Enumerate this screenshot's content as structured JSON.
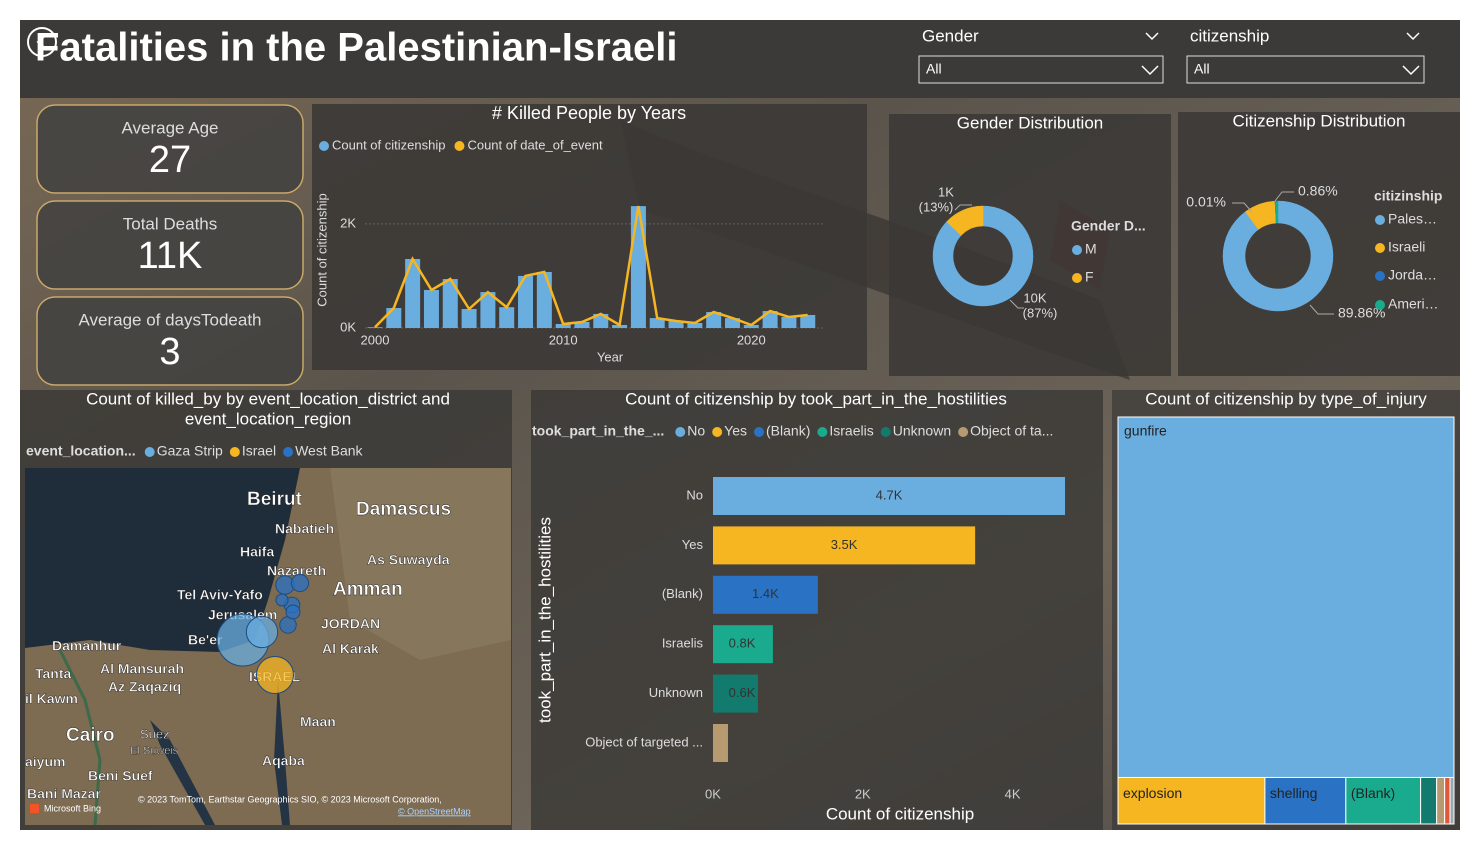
{
  "header": {
    "title": "Fatalities in the Palestinian-Israeli"
  },
  "filters": [
    {
      "label": "Gender",
      "value": "All"
    },
    {
      "label": "citizenship",
      "value": "All"
    }
  ],
  "cards": [
    {
      "label": "Average Age",
      "value": 27
    },
    {
      "label": "Total Deaths",
      "value": "11K"
    },
    {
      "label": "Average of daysTodeath",
      "value": 3
    }
  ],
  "map": {
    "title_lines": [
      "Count of killed_by by event_location_district and",
      "event_location_region"
    ],
    "legend_title": "event_location...",
    "series": [
      {
        "name": "Gaza Strip",
        "color": "#6aaee0",
        "values": [
          5500,
          2000
        ]
      },
      {
        "name": "Israel",
        "color": "#f5b621",
        "values": [
          2800
        ]
      },
      {
        "name": "West Bank",
        "color": "#2a72c4",
        "values": [
          700,
          600,
          500,
          550,
          400,
          300
        ]
      }
    ],
    "places": [
      "Beirut",
      "Damascus",
      "Nabatieh",
      "Haifa",
      "As Suwayda",
      "Nazareth",
      "Amman",
      "Tel Aviv-Yafo",
      "Jerusalem",
      "JORDAN",
      "Be'er",
      "Damanhur",
      "Al Mansurah",
      "Al Karak",
      "Tanta",
      "Az Zaqaziq",
      "il Kawm",
      "ISRAEL",
      "Cairo",
      "Suez",
      "El Suweis",
      "Maan",
      "Aqaba",
      "aiyum",
      "Beni Suef",
      "Bani Mazar"
    ],
    "attribution": [
      "© 2023 TomTom, Earthstar Geographics SIO, © 2023 Microsoft Corporation,",
      "© OpenStreetMap",
      "Microsoft Bing"
    ]
  },
  "chart_data": [
    {
      "type": "combo",
      "title": "# Killed People by Years",
      "x_label": "Year",
      "y_label": "Count of citizenship",
      "x": [
        2000,
        2001,
        2002,
        2003,
        2004,
        2005,
        2006,
        2007,
        2008,
        2009,
        2010,
        2011,
        2012,
        2013,
        2014,
        2015,
        2016,
        2017,
        2018,
        2019,
        2020,
        2021,
        2022,
        2023
      ],
      "series": [
        {
          "name": "Count of citizenship",
          "color": "#6aaee0",
          "mark": "bar",
          "values": [
            15,
            384,
            1325,
            730,
            940,
            365,
            690,
            400,
            1000,
            1075,
            77,
            115,
            270,
            58,
            2340,
            190,
            135,
            96,
            307,
            190,
            58,
            326,
            211,
            250
          ]
        },
        {
          "name": "Count of date_of_event",
          "color": "#f5b621",
          "mark": "line",
          "values": [
            15,
            384,
            1325,
            730,
            940,
            365,
            690,
            400,
            1000,
            1075,
            77,
            115,
            270,
            58,
            2340,
            190,
            135,
            96,
            307,
            190,
            58,
            326,
            211,
            250
          ]
        }
      ],
      "xlim": [
        1999.5,
        2023.8
      ],
      "xticks": [
        2000,
        2010,
        2020
      ],
      "ylim": [
        0,
        2400
      ],
      "yticks": [
        {
          "value": 0,
          "label": "0K"
        },
        {
          "value": 2000,
          "label": "2K"
        }
      ],
      "grid": true
    },
    {
      "type": "donut",
      "title": "Gender Distribution",
      "legend_title": "Gender D...",
      "categories": [
        "M",
        "F"
      ],
      "colors": [
        "#6aaee0",
        "#f5b621"
      ],
      "values": [
        87,
        13
      ],
      "value_labels": [
        "(87%)",
        "(13%)"
      ],
      "counts": [
        10000,
        1000
      ],
      "count_labels": [
        "10K",
        "1K"
      ]
    },
    {
      "type": "donut",
      "title": "Citizenship Distribution",
      "legend_title": "citizinship",
      "categories": [
        "Pales…",
        "Israeli",
        "Jorda…",
        "Ameri…"
      ],
      "colors": [
        "#6aaee0",
        "#f5b621",
        "#2a72c4",
        "#1aab8e"
      ],
      "values": [
        89.86,
        9.27,
        0.01,
        0.86
      ],
      "value_labels": [
        "89.86%",
        null,
        "0.01%",
        "0.86%"
      ]
    },
    {
      "type": "hbar",
      "title": "Count of citizenship by took_part_in_the_hostilities",
      "legend_title": "took_part_in_the_...",
      "legend": [
        "No",
        "Yes",
        "(Blank)",
        "Israelis",
        "Unknown",
        "Object of ta..."
      ],
      "categories": [
        "No",
        "Yes",
        "(Blank)",
        "Israelis",
        "Unknown",
        "Object of targeted ..."
      ],
      "colors": [
        "#6aaee0",
        "#f5b621",
        "#2a72c4",
        "#1aab8e",
        "#137a6e",
        "#b89a70"
      ],
      "values": [
        4700,
        3500,
        1400,
        800,
        600,
        200
      ],
      "value_labels": [
        "4.7K",
        "3.5K",
        "1.4K",
        "0.8K",
        "0.6K",
        null
      ],
      "x_label": "Count of citizenship",
      "y_label": "took_part_in_the_hostilities",
      "xlim": [
        0,
        4900
      ],
      "xticks": [
        {
          "value": 0,
          "label": "0K"
        },
        {
          "value": 2000,
          "label": "2K"
        },
        {
          "value": 4000,
          "label": "4K"
        }
      ]
    },
    {
      "type": "treemap",
      "title": "Count of citizenship by type_of_injury",
      "categories": [
        "gunfire",
        "explosion",
        "shelling",
        "(Blank)",
        null,
        null,
        null,
        null
      ],
      "colors": [
        "#6aaee0",
        "#f5b621",
        "#2a72c4",
        "#1aab8e",
        "#137a6e",
        "#b89a70",
        "#e0583a",
        "#9aa8b0"
      ],
      "values": [
        9750,
        550,
        303,
        280,
        60,
        30,
        20,
        15
      ]
    }
  ]
}
